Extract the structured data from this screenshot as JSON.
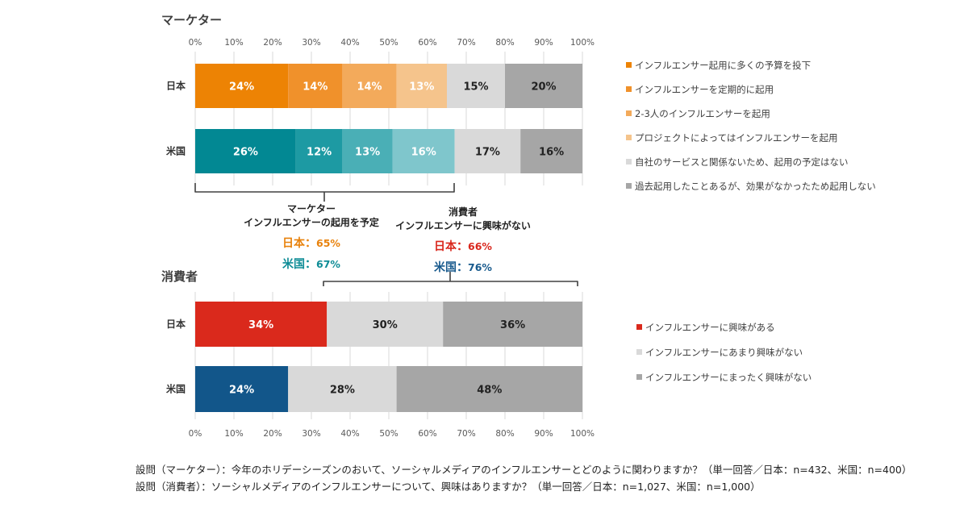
{
  "chart_data": [
    {
      "type": "bar",
      "orientation": "horizontal",
      "stacked": true,
      "title": "マーケター",
      "x_ticks": [
        "0%",
        "10%",
        "20%",
        "30%",
        "40%",
        "50%",
        "60%",
        "70%",
        "80%",
        "90%",
        "100%"
      ],
      "xlim": [
        0,
        100
      ],
      "legend_position": "right",
      "categories": [
        "日本",
        "米国"
      ],
      "series": [
        {
          "name": "インフルエンサー起用に多くの予算を投下",
          "values": [
            24,
            26
          ],
          "colors": [
            "#ED8304",
            "#028893"
          ]
        },
        {
          "name": "インフルエンサーを定期的に起用",
          "values": [
            14,
            12
          ],
          "colors": [
            "#F0912B",
            "#1D9AA3"
          ]
        },
        {
          "name": "2-3人のインフルエンサーを起用",
          "values": [
            14,
            13
          ],
          "colors": [
            "#F3AA5B",
            "#4AAFB6"
          ]
        },
        {
          "name": "プロジェクトによってはインフルエンサーを起用",
          "values": [
            13,
            16
          ],
          "colors": [
            "#F5C48C",
            "#7FC6CC"
          ]
        },
        {
          "name": "自社のサービスと関係ないため、起用の予定はない",
          "values": [
            15,
            17
          ],
          "colors": [
            "#D9D9D9",
            "#D9D9D9"
          ]
        },
        {
          "name": "過去起用したことあるが、効果がなかったため起用しない",
          "values": [
            20,
            16
          ],
          "colors": [
            "#A6A6A6",
            "#A6A6A6"
          ]
        }
      ],
      "legend_colors": [
        "#ED8304",
        "#F0912B",
        "#F3AA5B",
        "#F5C48C",
        "#D9D9D9",
        "#A6A6A6"
      ]
    },
    {
      "type": "bar",
      "orientation": "horizontal",
      "stacked": true,
      "title": "消費者",
      "x_ticks": [
        "0%",
        "10%",
        "20%",
        "30%",
        "40%",
        "50%",
        "60%",
        "70%",
        "80%",
        "90%",
        "100%"
      ],
      "xlim": [
        0,
        100
      ],
      "legend_position": "right",
      "categories": [
        "日本",
        "米国"
      ],
      "series": [
        {
          "name": "インフルエンサーに興味がある",
          "values": [
            34,
            24
          ],
          "colors": [
            "#DA291C",
            "#12568A"
          ]
        },
        {
          "name": "インフルエンサーにあまり興味がない",
          "values": [
            30,
            28
          ],
          "colors": [
            "#D9D9D9",
            "#D9D9D9"
          ]
        },
        {
          "name": "インフルエンサーにまったく興味がない",
          "values": [
            36,
            48
          ],
          "colors": [
            "#A6A6A6",
            "#A6A6A6"
          ]
        }
      ],
      "legend_colors": [
        "#DA291C",
        "#D9D9D9",
        "#A6A6A6"
      ]
    }
  ],
  "annotations": {
    "marketer": {
      "title_lines": [
        "マーケター",
        "インフルエンサーの起用を予定"
      ],
      "japan_label": "日本：",
      "japan_value": "65%",
      "us_label": "米国：",
      "us_value": "67%",
      "japan_color": "#E8820C",
      "us_color": "#0E8C96"
    },
    "consumer": {
      "title_lines": [
        "消費者",
        "インフルエンサーに興味がない"
      ],
      "japan_label": "日本：",
      "japan_value": "66%",
      "us_label": "米国：",
      "us_value": "76%",
      "japan_color": "#D9261C",
      "us_color": "#185A8D"
    }
  },
  "footnotes": [
    "設問（マーケター）：今年のホリデーシーズンのおいて、ソーシャルメディアのインフルエンサーとどのように関わりますか？（単一回答／日本：n=432、米国：n=400）",
    "設問（消費者）：ソーシャルメディアのインフルエンサーについて、興味はありますか？（単一回答／日本：n=1,027、米国：n=1,000）"
  ]
}
